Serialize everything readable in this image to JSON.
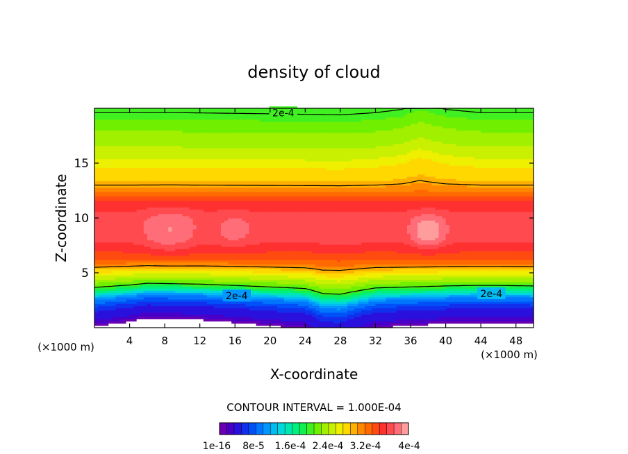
{
  "chart_data": {
    "type": "heatmap",
    "title": "density of cloud",
    "xlabel": "X-coordinate",
    "ylabel": "Z-coordinate",
    "x_unit_left": "(×1000 m)",
    "x_unit_right": "(×1000 m)",
    "xlim": [
      0,
      50
    ],
    "ylim": [
      0,
      20
    ],
    "x_ticks": [
      4,
      8,
      12,
      16,
      20,
      24,
      28,
      32,
      36,
      40,
      44,
      48
    ],
    "y_ticks": [
      5,
      10,
      15
    ],
    "contour_interval_text": "CONTOUR INTERVAL = 1.000E-04",
    "contour_labels": [
      {
        "text": "2e-4",
        "x": 21.5,
        "y": 19.6
      },
      {
        "text": "2e-4",
        "x": 16.2,
        "y": 2.9
      },
      {
        "text": "2e-4",
        "x": 45.2,
        "y": 3.1
      }
    ],
    "colorbar": {
      "tick_labels": [
        "1e-16",
        "8e-5",
        "1.6e-4",
        "2.4e-4",
        "3.2e-4",
        "4e-4"
      ],
      "colors": [
        "#6a00b0",
        "#4800c8",
        "#2a10dc",
        "#1030ee",
        "#0050f8",
        "#0076ff",
        "#0098ff",
        "#00bcf0",
        "#00d8dc",
        "#00e8b0",
        "#00f080",
        "#10f050",
        "#40f020",
        "#70f000",
        "#a0f000",
        "#c8f000",
        "#eef000",
        "#ffd800",
        "#ffb000",
        "#ff8800",
        "#ff6a00",
        "#ff4a10",
        "#ff3030",
        "#ff4a50",
        "#ff6e78",
        "#ff9c9c"
      ]
    },
    "profile_z": [
      0,
      0.6,
      1.0,
      1.4,
      1.8,
      2.2,
      2.6,
      3.0,
      3.4,
      3.8,
      4.4,
      5.0,
      5.5,
      6.0,
      6.8,
      8.0,
      10.0,
      11.5,
      12.5,
      13.5,
      14.5,
      15.5,
      16.5,
      17.5,
      18.5,
      19.2,
      20.0
    ],
    "profile_value": [
      0.0,
      0.3,
      0.4,
      0.45,
      0.6,
      0.8,
      1.0,
      1.4,
      1.8,
      2.1,
      2.4,
      2.7,
      3.0,
      3.3,
      3.5,
      3.7,
      3.75,
      3.55,
      3.15,
      2.85,
      2.75,
      2.55,
      2.4,
      2.3,
      2.15,
      2.05,
      1.95
    ],
    "base_shift": [
      [
        0,
        0.0
      ],
      [
        4,
        0.5
      ],
      [
        6,
        0.9
      ],
      [
        9,
        0.8
      ],
      [
        12,
        0.7
      ],
      [
        16,
        0.4
      ],
      [
        20,
        0.1
      ],
      [
        24,
        -0.2
      ],
      [
        26,
        -1.0
      ],
      [
        28,
        -1.1
      ],
      [
        30,
        -0.6
      ],
      [
        32,
        -0.1
      ],
      [
        36,
        0.1
      ],
      [
        40,
        0.3
      ],
      [
        43,
        0.4
      ],
      [
        46,
        0.4
      ],
      [
        50,
        0.3
      ]
    ],
    "top_shift": [
      [
        0,
        0.0
      ],
      [
        10,
        0.0
      ],
      [
        20,
        -0.1
      ],
      [
        28,
        -0.2
      ],
      [
        32,
        0.0
      ],
      [
        35,
        0.3
      ],
      [
        37,
        0.9
      ],
      [
        40,
        0.3
      ],
      [
        44,
        0.0
      ],
      [
        50,
        0.0
      ]
    ],
    "maxima": [
      {
        "x": 8.5,
        "z": 8.8,
        "rx": 3.0,
        "rz": 2.0,
        "amp": 0.28
      },
      {
        "x": 16.0,
        "z": 8.8,
        "rx": 2.5,
        "rz": 1.5,
        "amp": 0.18
      },
      {
        "x": 38.0,
        "z": 8.8,
        "rx": 2.0,
        "rz": 1.5,
        "amp": 0.42
      },
      {
        "x": 28.0,
        "z": 8.2,
        "rx": 2.5,
        "rz": 0.8,
        "amp": 0.12
      }
    ]
  }
}
